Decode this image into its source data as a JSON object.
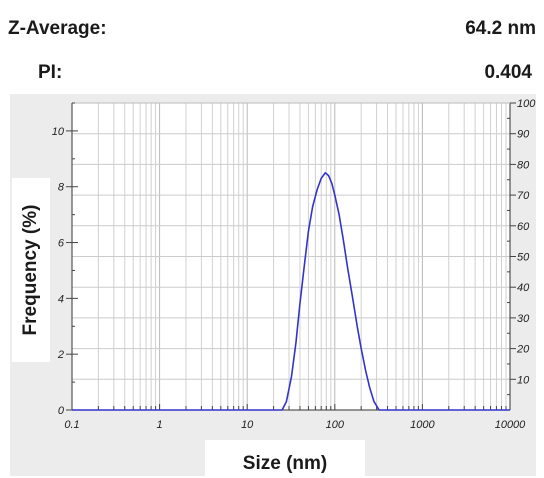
{
  "stats": {
    "z_average_label": "Z-Average:",
    "z_average_value": "64.2 nm",
    "pi_label": "PI:",
    "pi_value": "0.404"
  },
  "chart_data": {
    "type": "line",
    "xlabel": "Size (nm)",
    "ylabel": "Frequency (%)",
    "x_scale": "log",
    "xlim": [
      0.1,
      10000
    ],
    "ylim": [
      0,
      11
    ],
    "y2lim": [
      0,
      100
    ],
    "x_ticks": [
      "0.1",
      "1",
      "10",
      "100",
      "1000",
      "10000"
    ],
    "y_ticks": [
      "0",
      "2",
      "4",
      "6",
      "8",
      "10"
    ],
    "y2_ticks": [
      "10",
      "20",
      "30",
      "40",
      "50",
      "60",
      "70",
      "80",
      "90",
      "100"
    ],
    "grid": true,
    "series": [
      {
        "color": "#3333cc",
        "x": [
          0.1,
          0.2,
          0.5,
          1,
          2,
          5,
          10,
          20,
          25,
          28,
          32,
          36,
          40,
          45,
          50,
          56,
          63,
          70,
          78,
          85,
          93,
          100,
          112,
          125,
          140,
          160,
          180,
          200,
          225,
          250,
          280,
          320,
          360,
          1000,
          10000
        ],
        "y": [
          0,
          0,
          0,
          0,
          0,
          0,
          0,
          0,
          0,
          0.3,
          1.2,
          2.4,
          3.8,
          5.2,
          6.4,
          7.3,
          7.9,
          8.3,
          8.5,
          8.4,
          8.1,
          7.7,
          7.0,
          6.1,
          5.1,
          4.0,
          3.0,
          2.2,
          1.4,
          0.8,
          0.3,
          0,
          0,
          0,
          0
        ]
      }
    ]
  }
}
